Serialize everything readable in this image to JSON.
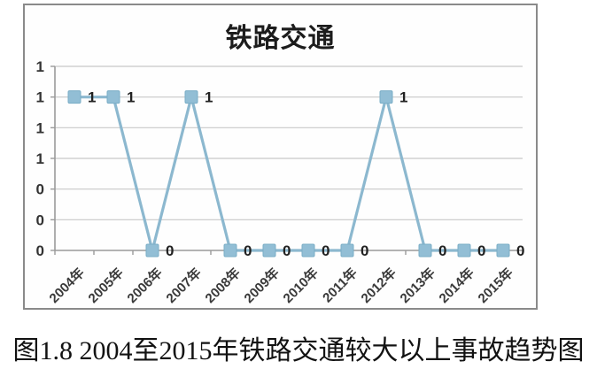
{
  "figure": {
    "caption": "图1.8 2004至2015年铁路交通较大以上事故趋势图"
  },
  "chart": {
    "title": "铁路交通"
  },
  "colors": {
    "line": "#8cb8cf",
    "marker_fill": "#92bed5",
    "marker_stroke": "#7aadc6",
    "gridline": "#c8c8c8",
    "axis": "#9a9a9a",
    "tick_label": "#333333",
    "data_label": "#222222",
    "frame_border": "#8a8a8a"
  },
  "chart_data": {
    "type": "line",
    "title": "铁路交通",
    "categories": [
      "2004年",
      "2005年",
      "2006年",
      "2007年",
      "2008年",
      "2009年",
      "2010年",
      "2011年",
      "2012年",
      "2013年",
      "2014年",
      "2015年"
    ],
    "values": [
      1,
      1,
      0,
      1,
      0,
      0,
      0,
      0,
      1,
      0,
      0,
      0
    ],
    "data_labels": [
      "1",
      "1",
      "0",
      "1",
      "0",
      "0",
      "0",
      "0",
      "1",
      "0",
      "0",
      "0"
    ],
    "xlabel": "",
    "ylabel": "",
    "ylim": [
      0,
      1.2
    ],
    "y_ticks": [
      0,
      0.2,
      0.4,
      0.6,
      0.8,
      1.0,
      1.2
    ],
    "y_tick_labels": [
      "0",
      "0",
      "0",
      "1",
      "1",
      "1",
      "1"
    ],
    "grid": true,
    "legend": "none",
    "marker": "square"
  }
}
